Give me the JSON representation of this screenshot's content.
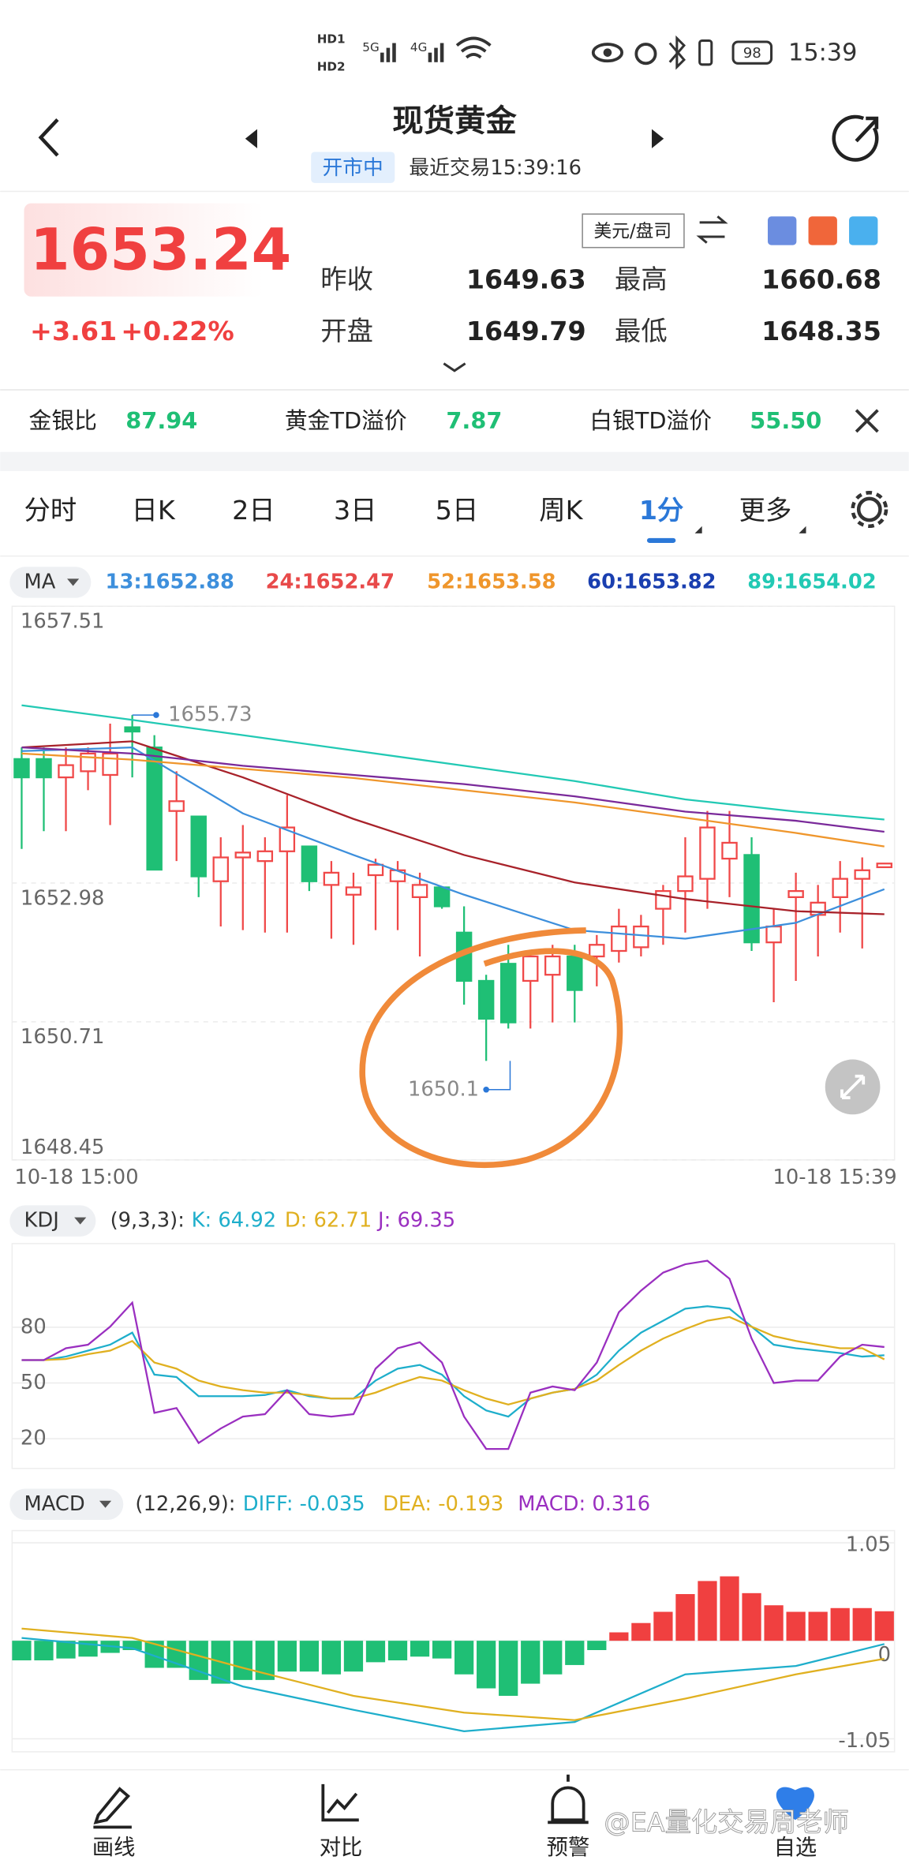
{
  "status_bar": {
    "signals": [
      "HD1",
      "HD2",
      "5G",
      "4G"
    ],
    "battery": "98",
    "time": "15:39"
  },
  "header": {
    "title": "现货黄金",
    "market_status": "开市中",
    "last_trade": "最近交易15:39:16"
  },
  "quote": {
    "price": "1653.24",
    "change": "+3.61",
    "change_pct": "+0.22%",
    "currency": "美元/盘司",
    "stats": [
      {
        "label": "昨收",
        "value": "1649.63"
      },
      {
        "label": "最高",
        "value": "1660.68"
      },
      {
        "label": "开盘",
        "value": "1649.79"
      },
      {
        "label": "最低",
        "value": "1648.35"
      }
    ]
  },
  "ratios": [
    {
      "label": "金银比",
      "value": "87.94"
    },
    {
      "label": "黄金TD溢价",
      "value": "7.87"
    },
    {
      "label": "白银TD溢价",
      "value": "55.50"
    }
  ],
  "tabs": {
    "items": [
      "分时",
      "日K",
      "2日",
      "3日",
      "5日",
      "周K",
      "1分",
      "更多"
    ],
    "active": 6
  },
  "chart_data": [
    {
      "type": "candlestick",
      "indicator": "MA",
      "ylim": [
        1648.45,
        1657.51
      ],
      "yticks": [
        1657.51,
        1652.98,
        1650.71,
        1648.45
      ],
      "x_labels": [
        "10-18 15:00",
        "10-18 15:39"
      ],
      "up_color": "#f04848",
      "down_color": "#1fbf75",
      "candles": [
        [
          1655.01,
          1655.2,
          1653.54,
          1654.71
        ],
        [
          1655.01,
          1655.2,
          1653.83,
          1654.71
        ],
        [
          1654.71,
          1655.2,
          1653.83,
          1654.91
        ],
        [
          1654.81,
          1655.2,
          1654.5,
          1655.1
        ],
        [
          1654.75,
          1655.59,
          1653.93,
          1655.1
        ],
        [
          1655.53,
          1655.73,
          1654.71,
          1655.46
        ],
        [
          1655.2,
          1655.4,
          1653.2,
          1653.2
        ],
        [
          1654.16,
          1654.81,
          1653.34,
          1654.32
        ],
        [
          1654.07,
          1654.07,
          1652.75,
          1653.09
        ],
        [
          1653.01,
          1653.73,
          1652.27,
          1653.4
        ],
        [
          1653.4,
          1653.93,
          1652.21,
          1653.48
        ],
        [
          1653.34,
          1653.73,
          1652.17,
          1653.5
        ],
        [
          1653.5,
          1654.42,
          1652.17,
          1653.89
        ],
        [
          1653.58,
          1653.58,
          1652.85,
          1653.01
        ],
        [
          1652.95,
          1653.34,
          1652.07,
          1653.15
        ],
        [
          1652.79,
          1653.15,
          1651.97,
          1652.91
        ],
        [
          1653.11,
          1653.38,
          1652.21,
          1653.28
        ],
        [
          1653.01,
          1653.34,
          1652.21,
          1653.19
        ],
        [
          1652.75,
          1653.15,
          1651.78,
          1652.95
        ],
        [
          1652.91,
          1652.91,
          1652.56,
          1652.6
        ],
        [
          1652.17,
          1652.6,
          1650.99,
          1651.38
        ],
        [
          1651.38,
          1651.48,
          1650.07,
          1650.76
        ],
        [
          1651.66,
          1651.97,
          1650.6,
          1650.7
        ],
        [
          1651.38,
          1651.87,
          1650.6,
          1651.78
        ],
        [
          1651.48,
          1651.97,
          1650.7,
          1651.78
        ],
        [
          1651.78,
          1651.97,
          1650.7,
          1651.23
        ],
        [
          1651.78,
          1652.13,
          1651.29,
          1651.97
        ],
        [
          1651.87,
          1652.56,
          1651.68,
          1652.27
        ],
        [
          1651.93,
          1652.46,
          1651.78,
          1652.27
        ],
        [
          1652.56,
          1652.95,
          1651.97,
          1652.85
        ],
        [
          1652.85,
          1653.73,
          1652.17,
          1653.09
        ],
        [
          1653.05,
          1654.16,
          1652.56,
          1653.89
        ],
        [
          1653.38,
          1654.16,
          1652.75,
          1653.64
        ],
        [
          1653.44,
          1653.73,
          1651.87,
          1652.01
        ],
        [
          1652.01,
          1652.56,
          1651.03,
          1652.27
        ],
        [
          1652.75,
          1653.15,
          1651.38,
          1652.85
        ],
        [
          1652.46,
          1652.95,
          1651.78,
          1652.66
        ],
        [
          1652.75,
          1653.34,
          1652.17,
          1653.05
        ],
        [
          1653.05,
          1653.4,
          1651.91,
          1653.19
        ],
        [
          1653.24,
          1653.3,
          1653.24,
          1653.3
        ]
      ],
      "annotations": [
        {
          "text": "1655.73",
          "index": 5
        },
        {
          "text": "1650.1",
          "index": 21
        }
      ],
      "series": [
        {
          "name": "13:1652.88",
          "color": "#3d8fdc",
          "x": [
            0,
            5,
            10,
            15,
            20,
            25,
            30,
            35,
            39
          ],
          "values": [
            1655.14,
            1655.2,
            1654.12,
            1653.44,
            1652.79,
            1652.21,
            1652.07,
            1652.33,
            1652.88
          ]
        },
        {
          "name": "24:1652.47",
          "color": "#e84a4a",
          "line_color": "#a8222a",
          "x": [
            0,
            5,
            10,
            15,
            20,
            25,
            30,
            35,
            39
          ],
          "values": [
            1655.2,
            1655.3,
            1654.71,
            1654.03,
            1653.44,
            1652.99,
            1652.72,
            1652.52,
            1652.47
          ]
        },
        {
          "name": "52:1653.58",
          "color": "#ef962c",
          "x": [
            0,
            5,
            10,
            15,
            20,
            25,
            30,
            35,
            39
          ],
          "values": [
            1655.1,
            1655.0,
            1654.85,
            1654.7,
            1654.5,
            1654.3,
            1654.05,
            1653.8,
            1653.58
          ]
        },
        {
          "name": "60:1653.82",
          "color": "#1a3fb0",
          "line_color": "#7a2a9a",
          "x": [
            0,
            5,
            10,
            15,
            20,
            25,
            30,
            35,
            39
          ],
          "values": [
            1655.2,
            1655.1,
            1654.9,
            1654.75,
            1654.6,
            1654.4,
            1654.15,
            1654.0,
            1653.82
          ]
        },
        {
          "name": "89:1654.02",
          "color": "#22c9b4",
          "x": [
            0,
            5,
            10,
            15,
            20,
            25,
            30,
            35,
            39
          ],
          "values": [
            1655.89,
            1655.65,
            1655.4,
            1655.15,
            1654.9,
            1654.65,
            1654.35,
            1654.15,
            1654.02
          ]
        }
      ]
    },
    {
      "type": "line",
      "indicator": "KDJ",
      "params": "(9,3,3):",
      "ylim": [
        4,
        125
      ],
      "yticks": [
        80,
        50,
        20
      ],
      "series": [
        {
          "name": "K: 64.92",
          "color": "#1eaecb",
          "values": [
            62.3,
            62.3,
            64.2,
            67.4,
            70.6,
            77.1,
            54.5,
            53.2,
            42.9,
            42.9,
            42.9,
            43.5,
            46.1,
            42.9,
            41.6,
            41.6,
            51.3,
            57.7,
            59.7,
            54.5,
            42.9,
            35.2,
            31.9,
            41.6,
            44.8,
            46.8,
            54.5,
            67.4,
            77.1,
            83.5,
            90.0,
            91.3,
            90.0,
            80.3,
            70.6,
            68.7,
            67.4,
            66.1,
            64.2,
            64.92
          ]
        },
        {
          "name": "D: 62.71",
          "color": "#e0b020",
          "values": [
            62.3,
            62.3,
            62.9,
            65.5,
            67.4,
            72.6,
            61.0,
            57.7,
            51.3,
            48.1,
            46.1,
            44.8,
            44.8,
            43.5,
            41.6,
            41.6,
            44.8,
            49.4,
            53.2,
            51.3,
            46.1,
            41.6,
            38.4,
            41.6,
            44.8,
            46.8,
            51.3,
            59.7,
            67.4,
            73.9,
            79.0,
            83.5,
            85.5,
            80.3,
            75.2,
            72.6,
            70.6,
            68.7,
            68.7,
            62.71
          ]
        },
        {
          "name": "J: 69.35",
          "color": "#9a2fc0",
          "values": [
            62.3,
            62.3,
            68.7,
            70.6,
            80.3,
            93.2,
            33.9,
            36.5,
            17.7,
            25.5,
            31.9,
            33.2,
            46.1,
            33.2,
            31.9,
            33.2,
            57.7,
            68.7,
            71.9,
            61.0,
            31.9,
            14.5,
            14.5,
            44.8,
            48.1,
            46.1,
            61.0,
            88.1,
            99.7,
            109.4,
            113.9,
            115.8,
            106.1,
            73.9,
            50,
            51.3,
            51.3,
            64.2,
            70.6,
            69.35
          ]
        }
      ]
    },
    {
      "type": "bar",
      "indicator": "MACD",
      "params": "(12,26,9):",
      "ylim": [
        -1.19,
        1.18
      ],
      "yticks": [
        1.05,
        0,
        -1.05
      ],
      "up_color": "#f04040",
      "down_color": "#1fbf75",
      "bar_label": "MACD: 0.316",
      "bar_label_color": "#9a2fc0",
      "values": [
        -0.21,
        -0.21,
        -0.19,
        -0.17,
        -0.13,
        -0.1,
        -0.29,
        -0.29,
        -0.42,
        -0.46,
        -0.42,
        -0.42,
        -0.33,
        -0.33,
        -0.36,
        -0.33,
        -0.23,
        -0.21,
        -0.17,
        -0.19,
        -0.36,
        -0.51,
        -0.59,
        -0.46,
        -0.36,
        -0.26,
        -0.1,
        0.09,
        0.19,
        0.31,
        0.5,
        0.64,
        0.69,
        0.51,
        0.38,
        0.31,
        0.31,
        0.35,
        0.35,
        0.316
      ],
      "series": [
        {
          "name": "DIFF: -0.035",
          "color": "#1eaecb",
          "x": [
            0,
            5,
            10,
            15,
            20,
            25,
            30,
            35,
            39
          ],
          "values": [
            0.03,
            -0.08,
            -0.49,
            -0.74,
            -0.97,
            -0.87,
            -0.36,
            -0.27,
            -0.035
          ]
        },
        {
          "name": "DEA: -0.193",
          "color": "#e0b020",
          "x": [
            0,
            5,
            10,
            15,
            20,
            25,
            30,
            35,
            39
          ],
          "values": [
            0.13,
            0.03,
            -0.29,
            -0.59,
            -0.77,
            -0.85,
            -0.62,
            -0.36,
            -0.193
          ]
        }
      ]
    }
  ],
  "nav": {
    "items": [
      "画线",
      "对比",
      "预警",
      "自选"
    ],
    "watermark": "@EA量化交易周老师"
  }
}
